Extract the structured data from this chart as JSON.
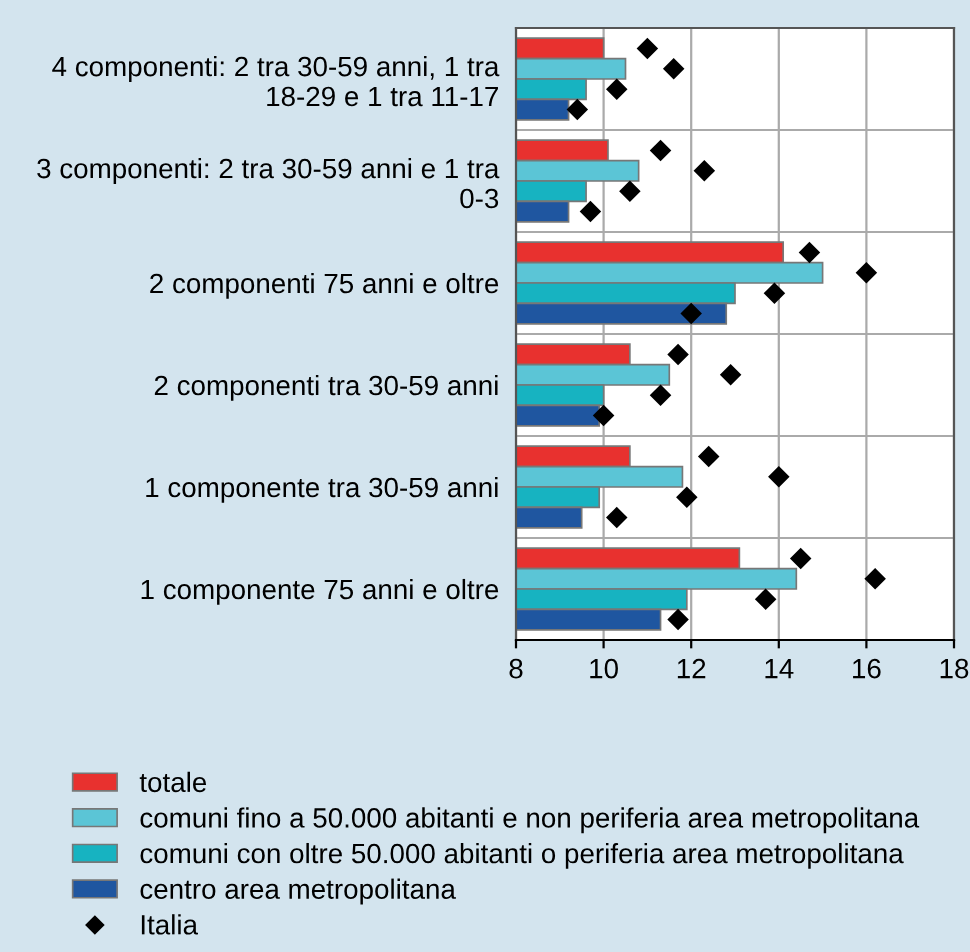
{
  "chart_data": {
    "type": "bar",
    "orientation": "horizontal",
    "categories": [
      "4 componenti: 2 tra 30-59 anni, 1 tra 18-29 e 1 tra 11-17",
      "3 componenti: 2 tra 30-59 anni e 1 tra 0-3",
      "2 componenti 75 anni e oltre",
      "2 componenti tra 30-59 anni",
      "1 componente tra 30-59 anni",
      "1 componente 75 anni e oltre"
    ],
    "series": [
      {
        "name": "totale",
        "color": "#e8312f",
        "values": [
          10.0,
          10.1,
          14.1,
          10.6,
          10.6,
          13.1
        ]
      },
      {
        "name": "comuni fino a 50.000 abitanti e non periferia area metropolitana",
        "color": "#5bc5d6",
        "values": [
          10.5,
          10.8,
          15.0,
          11.5,
          11.8,
          14.4
        ]
      },
      {
        "name": "comuni con oltre 50.000 abitanti o periferia area metropolitana",
        "color": "#17b3c1",
        "values": [
          9.6,
          9.6,
          13.0,
          10.0,
          9.9,
          11.9
        ]
      },
      {
        "name": "centro area metropolitana",
        "color": "#1f56a0",
        "values": [
          9.2,
          9.2,
          12.8,
          9.9,
          9.5,
          11.3
        ]
      },
      {
        "name": "Italia",
        "type": "scatter",
        "marker": "diamond",
        "color": "#000000",
        "values": [
          11.0,
          11.3,
          14.7,
          11.7,
          12.4,
          14.5
        ]
      },
      {
        "type": "scatter",
        "marker": "diamond",
        "color": "#000000",
        "values": [
          11.6,
          12.3,
          16.0,
          12.9,
          14.0,
          16.2
        ]
      },
      {
        "type": "scatter",
        "marker": "diamond",
        "color": "#000000",
        "values": [
          10.3,
          10.6,
          13.9,
          11.3,
          11.9,
          13.7
        ]
      },
      {
        "type": "scatter",
        "marker": "diamond",
        "color": "#000000",
        "values": [
          9.4,
          9.7,
          12.0,
          10.0,
          10.3,
          11.7
        ]
      }
    ],
    "xlim": [
      8,
      18
    ],
    "xticks": [
      8,
      10,
      12,
      14,
      16,
      18
    ],
    "grid": true,
    "legend": "bottom"
  }
}
